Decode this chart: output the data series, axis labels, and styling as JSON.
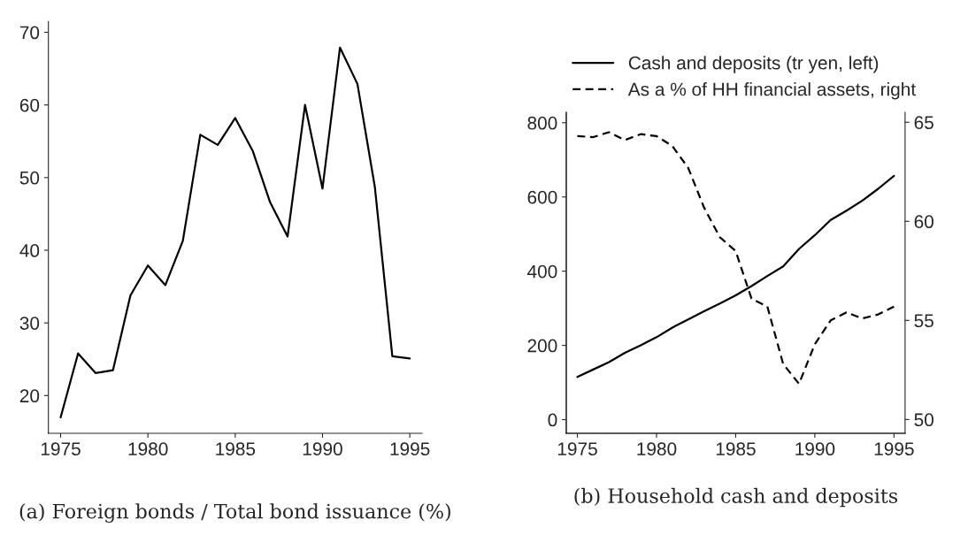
{
  "chart_data": [
    {
      "type": "line",
      "title": "(a) Foreign bonds / Total bond issuance (%)",
      "x": [
        1975,
        1976,
        1977,
        1978,
        1979,
        1980,
        1981,
        1982,
        1983,
        1984,
        1985,
        1986,
        1987,
        1988,
        1989,
        1990,
        1991,
        1992,
        1993,
        1994,
        1995
      ],
      "series": [
        {
          "color": "#000000",
          "line_style": "solid",
          "values": [
            17.0,
            25.8,
            23.1,
            23.5,
            33.8,
            37.9,
            35.2,
            41.3,
            55.9,
            54.5,
            58.2,
            53.7,
            46.6,
            41.9,
            60.0,
            48.5,
            67.9,
            62.9,
            48.7,
            25.4,
            25.1
          ]
        }
      ],
      "xlim": [
        1974.3,
        1995.7
      ],
      "xticks": [
        1975,
        1980,
        1985,
        1990,
        1995
      ],
      "ylim": [
        14.8,
        71.5
      ],
      "yticks": [
        20,
        30,
        40,
        50,
        60,
        70
      ],
      "grid": false,
      "legend": false
    },
    {
      "type": "line",
      "title": "(b) Household cash and deposits",
      "x": [
        1975,
        1976,
        1977,
        1978,
        1979,
        1980,
        1981,
        1982,
        1983,
        1984,
        1985,
        1986,
        1987,
        1988,
        1989,
        1990,
        1991,
        1992,
        1993,
        1994,
        1995
      ],
      "series": [
        {
          "name": "Cash and deposits (tr yen, left)",
          "color": "#000000",
          "line_style": "solid",
          "values": [
            115,
            135,
            155,
            180,
            200,
            222,
            248,
            270,
            292,
            313,
            335,
            360,
            387,
            413,
            460,
            497,
            538,
            563,
            590,
            622,
            657
          ]
        },
        {
          "name": "As a % of HH financial assets, right",
          "color": "#000000",
          "line_style": "dashed",
          "axis": "y2",
          "values": [
            64.3,
            64.25,
            64.5,
            64.1,
            64.4,
            64.3,
            63.8,
            62.7,
            60.7,
            59.2,
            58.5,
            56.1,
            55.7,
            52.8,
            51.8,
            53.8,
            55.0,
            55.4,
            55.1,
            55.3,
            55.7
          ]
        }
      ],
      "xlim": [
        1974.3,
        1995.7
      ],
      "xticks": [
        1975,
        1980,
        1985,
        1990,
        1995
      ],
      "ylim": [
        -37,
        828
      ],
      "yticks": [
        0,
        200,
        400,
        600,
        800
      ],
      "y2lim": [
        49.3,
        65.5
      ],
      "y2ticks": [
        50,
        55,
        60,
        65
      ],
      "grid": false,
      "legend": "top"
    }
  ]
}
